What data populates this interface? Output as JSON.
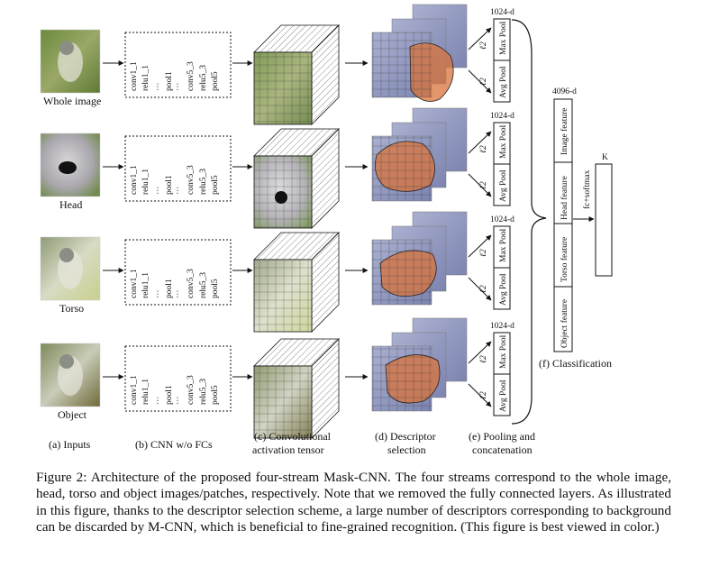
{
  "streams": [
    {
      "input_label": "Whole image",
      "layers": [
        "conv1_1",
        "relu1_1",
        "...",
        "pool1",
        "...",
        "conv5_3",
        "relu5_3",
        "pool5"
      ]
    },
    {
      "input_label": "Head",
      "layers": [
        "conv1_1",
        "relu1_1",
        "...",
        "pool1",
        "...",
        "conv5_3",
        "relu5_3",
        "pool5"
      ]
    },
    {
      "input_label": "Torso",
      "layers": [
        "conv1_1",
        "relu1_1",
        "...",
        "pool1",
        "...",
        "conv5_3",
        "relu5_3",
        "pool5"
      ]
    },
    {
      "input_label": "Object",
      "layers": [
        "conv1_1",
        "relu1_1",
        "...",
        "pool1",
        "...",
        "conv5_3",
        "relu5_3",
        "pool5"
      ]
    }
  ],
  "pooling": {
    "dim_label": "1024-d",
    "max_label": "Max Pool",
    "avg_label": "Avg Pool",
    "l2_label": "ℓ2"
  },
  "classification": {
    "dim_label": "4096-d",
    "features": [
      "Object feature",
      "Torso feature",
      "Head feature",
      "Image feature"
    ],
    "fc_label": "fc+softmax",
    "out_label": "K"
  },
  "stage_labels": {
    "inputs": "(a) Inputs",
    "cnn": "(b) CNN w/o FCs",
    "conv_line1": "(c) Convolutional",
    "conv_line2": "activation tensor",
    "desc_line1": "(d) Descriptor",
    "desc_line2": "selection",
    "pool_line1": "(e) Pooling and",
    "pool_line2": "concatenation",
    "classification": "(f) Classification"
  },
  "caption": "Figure 2: Architecture of the proposed four-stream Mask-CNN. The four streams correspond to the whole image, head, torso and object images/patches, respectively. Note that we removed the fully connected layers. As illustrated in this figure, thanks to the descriptor selection scheme, a large number of descriptors corresponding to background can be discarded by M-CNN, which is beneficial to fine-grained recognition. (This figure is best viewed in color.)",
  "colors": {
    "pool5": "#c0392b",
    "mask_orange": "#d9733a",
    "bird_green": "#7f8f5a",
    "background_blue": "#8a90b8"
  }
}
